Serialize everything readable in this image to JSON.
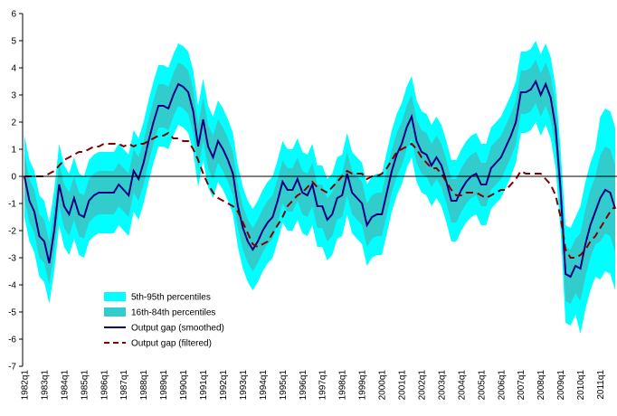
{
  "chart_data": {
    "type": "band-line",
    "categories": [
      "1982q1",
      null,
      null,
      null,
      "1983q1",
      null,
      null,
      null,
      "1984q1",
      null,
      null,
      null,
      "1985q1",
      null,
      null,
      null,
      "1986q1",
      null,
      null,
      null,
      "1987q1",
      null,
      null,
      null,
      "1988q1",
      null,
      null,
      null,
      "1989q1",
      null,
      null,
      null,
      "1990q1",
      null,
      null,
      null,
      "1991q1",
      null,
      null,
      null,
      "1992q1",
      null,
      null,
      null,
      "1993q1",
      null,
      null,
      null,
      "1994q1",
      null,
      null,
      null,
      "1995q1",
      null,
      null,
      null,
      "1996q1",
      null,
      null,
      null,
      "1997q1",
      null,
      null,
      null,
      "1998q1",
      null,
      null,
      null,
      "1999q1",
      null,
      null,
      null,
      "2000q1",
      null,
      null,
      null,
      "2001q1",
      null,
      null,
      null,
      "2002q1",
      null,
      null,
      null,
      "2003q1",
      null,
      null,
      null,
      "2004q1",
      null,
      null,
      null,
      "2005q1",
      null,
      null,
      null,
      "2006q1",
      null,
      null,
      null,
      "2007q1",
      null,
      null,
      null,
      "2008q1",
      null,
      null,
      null,
      "2009q1",
      null,
      null,
      null,
      "2010q1",
      null,
      null,
      null,
      "2011q1",
      null,
      null,
      null
    ],
    "ylim": [
      -7,
      6
    ],
    "yticks": [
      -7,
      -6,
      -5,
      -4,
      -3,
      -2,
      -1,
      0,
      1,
      2,
      3,
      4,
      5,
      6
    ],
    "legend": "lower left",
    "series": [
      {
        "name": "5th-95th percentiles",
        "style": "band",
        "color": "#00ffff",
        "lower": [
          -1.5,
          -2.4,
          -2.8,
          -3.7,
          -3.9,
          -4.7,
          -3.5,
          -1.8,
          -2.6,
          -2.9,
          -2.3,
          -2.9,
          -3.0,
          -2.4,
          -2.2,
          -2.1,
          -2.1,
          -2.1,
          -2.1,
          -1.8,
          -2.0,
          -2.2,
          -1.3,
          -1.6,
          -1.0,
          -0.2,
          0.5,
          1.1,
          1.1,
          1.0,
          1.5,
          1.9,
          1.8,
          1.6,
          0.9,
          -0.4,
          0.6,
          -0.4,
          -0.8,
          -0.2,
          -0.5,
          -0.9,
          -1.4,
          -2.6,
          -3.4,
          -3.9,
          -4.2,
          -3.9,
          -3.5,
          -3.2,
          -3.0,
          -2.4,
          -1.7,
          -2.0,
          -2.0,
          -1.6,
          -2.1,
          -2.2,
          -1.8,
          -2.6,
          -2.6,
          -3.1,
          -2.9,
          -2.3,
          -2.2,
          -1.4,
          -2.1,
          -2.3,
          -2.5,
          -3.3,
          -3.0,
          -2.9,
          -2.9,
          -2.1,
          -1.3,
          -0.7,
          -0.3,
          0.3,
          0.7,
          -0.2,
          -0.6,
          -0.7,
          -1.1,
          -0.8,
          -1.1,
          -1.7,
          -2.4,
          -2.4,
          -2.0,
          -1.7,
          -1.5,
          -1.4,
          -1.8,
          -1.8,
          -1.2,
          -1.0,
          -0.8,
          -0.4,
          0.0,
          0.5,
          1.6,
          1.6,
          1.7,
          2.0,
          1.5,
          1.9,
          1.4,
          0.3,
          -2.0,
          -5.4,
          -5.5,
          -5.1,
          -5.8,
          -4.9,
          -4.2,
          -3.7,
          -3.8,
          -3.5,
          -3.6,
          -4.2
        ],
        "upper": [
          1.5,
          0.6,
          0.2,
          -0.7,
          -0.9,
          -1.7,
          -0.5,
          1.2,
          0.4,
          0.1,
          0.7,
          0.1,
          0.0,
          0.6,
          0.8,
          0.9,
          0.9,
          0.9,
          0.9,
          1.2,
          1.0,
          0.8,
          1.7,
          1.4,
          2.0,
          2.8,
          3.5,
          4.1,
          4.1,
          4.0,
          4.5,
          4.9,
          4.8,
          4.6,
          3.9,
          2.6,
          3.6,
          2.6,
          2.2,
          2.8,
          2.5,
          2.1,
          1.6,
          0.4,
          -0.4,
          -0.9,
          -1.2,
          -0.9,
          -0.5,
          -0.2,
          0.0,
          0.6,
          1.3,
          1.0,
          1.0,
          1.4,
          0.9,
          0.8,
          1.2,
          0.4,
          0.4,
          -0.1,
          0.1,
          0.7,
          0.8,
          1.6,
          0.9,
          0.7,
          0.5,
          -0.3,
          0.0,
          0.1,
          0.1,
          0.9,
          1.7,
          2.3,
          2.7,
          3.3,
          3.7,
          2.8,
          2.4,
          2.3,
          1.9,
          2.2,
          1.9,
          1.3,
          0.6,
          0.6,
          1.0,
          1.3,
          1.5,
          1.6,
          1.2,
          1.2,
          1.8,
          2.0,
          2.2,
          2.6,
          3.0,
          3.5,
          4.6,
          4.6,
          4.7,
          5.0,
          4.5,
          4.9,
          4.4,
          3.3,
          1.0,
          -1.8,
          -1.9,
          -1.5,
          -1.1,
          -0.2,
          0.5,
          1.0,
          2.2,
          2.5,
          2.4,
          1.8
        ]
      },
      {
        "name": "16th-84th percentiles",
        "style": "band",
        "color": "#33cccc",
        "lower": [
          -0.8,
          -1.7,
          -2.1,
          -3.0,
          -3.2,
          -4.0,
          -2.8,
          -1.1,
          -1.9,
          -2.2,
          -1.6,
          -2.2,
          -2.3,
          -1.7,
          -1.5,
          -1.4,
          -1.4,
          -1.4,
          -1.4,
          -1.1,
          -1.3,
          -1.5,
          -0.6,
          -0.9,
          -0.3,
          0.5,
          1.2,
          1.8,
          1.8,
          1.7,
          2.2,
          2.6,
          2.5,
          2.3,
          1.6,
          0.3,
          1.3,
          0.3,
          -0.1,
          0.5,
          0.2,
          -0.2,
          -0.7,
          -1.9,
          -2.7,
          -3.2,
          -3.5,
          -3.2,
          -2.8,
          -2.5,
          -2.3,
          -1.7,
          -1.0,
          -1.3,
          -1.3,
          -0.9,
          -1.4,
          -1.5,
          -1.1,
          -1.9,
          -1.9,
          -2.4,
          -2.2,
          -1.6,
          -1.5,
          -0.7,
          -1.4,
          -1.6,
          -1.8,
          -2.6,
          -2.3,
          -2.2,
          -2.2,
          -1.4,
          -0.6,
          0.0,
          0.4,
          1.0,
          1.4,
          0.5,
          0.1,
          0.0,
          -0.4,
          -0.1,
          -0.4,
          -1.0,
          -1.7,
          -1.7,
          -1.3,
          -1.0,
          -0.8,
          -0.7,
          -1.1,
          -1.1,
          -0.5,
          -0.3,
          -0.1,
          0.3,
          0.7,
          1.2,
          2.3,
          2.3,
          2.4,
          2.7,
          2.2,
          2.6,
          2.1,
          1.0,
          -1.3,
          -4.6,
          -4.7,
          -4.3,
          -4.6,
          -3.7,
          -3.0,
          -2.5,
          -2.4,
          -2.1,
          -2.2,
          -2.8
        ],
        "upper": [
          0.8,
          -0.1,
          -0.5,
          -1.4,
          -1.6,
          -2.4,
          -1.2,
          0.5,
          -0.3,
          -0.6,
          0.0,
          -0.6,
          -0.7,
          -0.1,
          0.1,
          0.2,
          0.2,
          0.2,
          0.2,
          0.5,
          0.3,
          0.1,
          1.0,
          0.7,
          1.3,
          2.1,
          2.8,
          3.4,
          3.4,
          3.3,
          3.8,
          4.2,
          4.1,
          3.9,
          3.2,
          1.9,
          2.9,
          1.9,
          1.5,
          2.1,
          1.8,
          1.4,
          0.9,
          -0.3,
          -1.1,
          -1.6,
          -1.9,
          -1.6,
          -1.2,
          -0.9,
          -0.7,
          -0.1,
          0.6,
          0.3,
          0.3,
          0.7,
          0.2,
          0.1,
          0.5,
          -0.3,
          -0.3,
          -0.8,
          -0.6,
          0.0,
          0.1,
          0.9,
          0.2,
          0.0,
          -0.2,
          -1.0,
          -0.7,
          -0.6,
          -0.6,
          0.2,
          1.0,
          1.6,
          2.0,
          2.6,
          3.0,
          2.1,
          1.7,
          1.6,
          1.2,
          1.5,
          1.2,
          0.6,
          -0.1,
          -0.1,
          0.3,
          0.6,
          0.8,
          0.9,
          0.5,
          0.5,
          1.1,
          1.3,
          1.5,
          1.9,
          2.3,
          2.8,
          3.9,
          3.9,
          4.0,
          4.3,
          3.8,
          4.2,
          3.7,
          2.6,
          0.3,
          -2.6,
          -2.7,
          -2.3,
          -2.1,
          -1.2,
          -0.5,
          0.0,
          0.8,
          1.1,
          1.0,
          0.4
        ]
      },
      {
        "name": "Output gap (smoothed)",
        "style": "line",
        "color": "#000080",
        "values": [
          0.0,
          -0.9,
          -1.3,
          -2.2,
          -2.4,
          -3.2,
          -2.0,
          -0.3,
          -1.1,
          -1.4,
          -0.8,
          -1.4,
          -1.5,
          -0.9,
          -0.7,
          -0.6,
          -0.6,
          -0.6,
          -0.6,
          -0.3,
          -0.5,
          -0.7,
          0.2,
          -0.1,
          0.5,
          1.3,
          2.0,
          2.6,
          2.6,
          2.5,
          3.0,
          3.4,
          3.3,
          3.1,
          2.4,
          1.1,
          2.1,
          1.1,
          0.7,
          1.3,
          1.0,
          0.6,
          0.1,
          -1.1,
          -1.9,
          -2.4,
          -2.7,
          -2.4,
          -2.0,
          -1.7,
          -1.5,
          -0.9,
          -0.2,
          -0.5,
          -0.5,
          -0.1,
          -0.6,
          -0.7,
          -0.3,
          -1.1,
          -1.1,
          -1.6,
          -1.4,
          -0.8,
          -0.7,
          0.1,
          -0.6,
          -0.8,
          -1.0,
          -1.8,
          -1.5,
          -1.4,
          -1.4,
          -0.6,
          0.2,
          0.8,
          1.2,
          1.8,
          2.2,
          1.3,
          0.9,
          0.8,
          0.4,
          0.7,
          0.4,
          -0.2,
          -0.9,
          -0.9,
          -0.5,
          -0.2,
          0.0,
          0.1,
          -0.3,
          -0.3,
          0.3,
          0.5,
          0.7,
          1.1,
          1.5,
          2.0,
          3.1,
          3.1,
          3.2,
          3.5,
          3.0,
          3.4,
          2.9,
          1.8,
          -0.5,
          -3.6,
          -3.7,
          -3.3,
          -3.4,
          -2.5,
          -1.8,
          -1.3,
          -0.8,
          -0.5,
          -0.6,
          -1.2
        ]
      },
      {
        "name": "Output gap (filtered)",
        "style": "line",
        "dashed": true,
        "color": "#800000",
        "values": [
          0.0,
          0.0,
          0.0,
          0.0,
          0.0,
          0.1,
          0.2,
          0.4,
          0.6,
          0.7,
          0.8,
          0.9,
          0.9,
          1.0,
          1.1,
          1.1,
          1.2,
          1.2,
          1.2,
          1.2,
          1.1,
          1.2,
          1.1,
          1.2,
          1.2,
          1.3,
          1.4,
          1.5,
          1.5,
          1.6,
          1.4,
          1.4,
          1.3,
          1.3,
          1.0,
          0.6,
          0.1,
          -0.3,
          -0.6,
          -0.8,
          -0.9,
          -1.0,
          -1.1,
          -1.3,
          -1.7,
          -2.1,
          -2.5,
          -2.6,
          -2.5,
          -2.4,
          -2.1,
          -1.8,
          -1.5,
          -1.1,
          -0.9,
          -0.7,
          -0.6,
          -0.4,
          -0.2,
          -0.4,
          -0.5,
          -0.6,
          -0.4,
          -0.2,
          0.0,
          0.2,
          0.1,
          0.1,
          0.1,
          -0.1,
          0.0,
          0.0,
          0.1,
          0.3,
          0.6,
          0.9,
          1.0,
          1.1,
          1.2,
          1.0,
          0.7,
          0.5,
          0.3,
          0.3,
          0.1,
          -0.2,
          -0.5,
          -0.7,
          -0.7,
          -0.6,
          -0.6,
          -0.6,
          -0.7,
          -0.8,
          -0.7,
          -0.6,
          -0.5,
          -0.5,
          -0.3,
          -0.1,
          0.2,
          0.1,
          0.1,
          0.1,
          0.1,
          -0.1,
          -0.3,
          -0.7,
          -1.5,
          -2.7,
          -3.0,
          -3.0,
          -2.9,
          -2.7,
          -2.4,
          -2.2,
          -1.9,
          -1.6,
          -1.3,
          -1.1
        ]
      }
    ]
  }
}
